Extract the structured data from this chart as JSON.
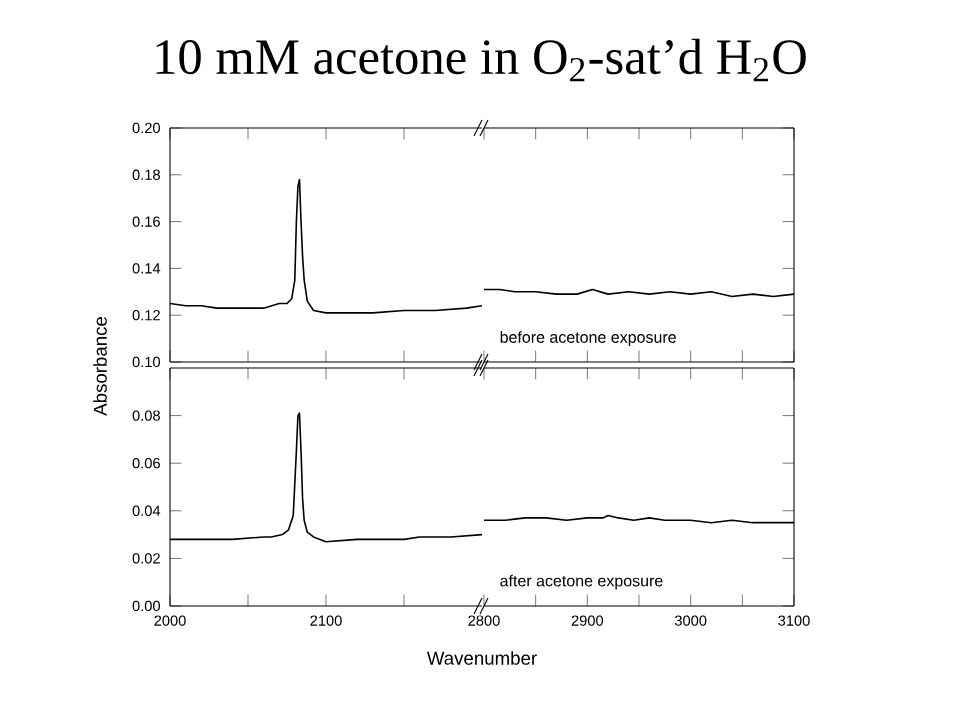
{
  "chart_data": [
    {
      "type": "line",
      "title": "10 mM acetone in O$_{2}$-sat’d H$_{2}$O",
      "color": "#000000",
      "xlim": [
        2000,
        2200
      ],
      "ylim": [
        0.1,
        0.2
      ],
      "tick_labels": "y",
      "xticks": [
        2000,
        {
          "value": 2050,
          "label": null
        },
        2100,
        {
          "value": 2150,
          "label": null
        }
      ],
      "yticks": [
        {
          "value": 0.1,
          "label": "0.10"
        },
        {
          "value": 0.12,
          "label": "0.12"
        },
        {
          "value": 0.14,
          "label": "0.14"
        },
        {
          "value": 0.16,
          "label": "0.16"
        },
        {
          "value": 0.18,
          "label": "0.18"
        },
        {
          "value": 0.2,
          "label": "0.20"
        }
      ],
      "x": [
        2000,
        2010,
        2020,
        2030,
        2040,
        2050,
        2060,
        2070,
        2075,
        2078,
        2080,
        2081,
        2082,
        2083,
        2084,
        2085,
        2086,
        2088,
        2092,
        2100,
        2110,
        2130,
        2150,
        2170,
        2190,
        2200
      ],
      "values": [
        0.125,
        0.124,
        0.124,
        0.123,
        0.123,
        0.123,
        0.123,
        0.125,
        0.125,
        0.127,
        0.135,
        0.16,
        0.175,
        0.178,
        0.16,
        0.145,
        0.135,
        0.126,
        0.122,
        0.121,
        0.121,
        0.121,
        0.122,
        0.122,
        0.123,
        0.124
      ]
    },
    {
      "type": "line",
      "color": "#000000",
      "xlim": [
        2800,
        3100
      ],
      "ylim": [
        0.1,
        0.2
      ],
      "tick_labels": false,
      "xticks": [
        2800,
        {
          "value": 2850,
          "label": null
        },
        2900,
        {
          "value": 2950,
          "label": null
        },
        3000,
        {
          "value": 3050,
          "label": null
        },
        3100
      ],
      "yticks": [
        0.1,
        0.12,
        0.14,
        0.16,
        0.18,
        0.2
      ],
      "annotations": [
        "before acetone exposure"
      ],
      "x": [
        2800,
        2815,
        2830,
        2850,
        2870,
        2890,
        2905,
        2920,
        2940,
        2960,
        2980,
        3000,
        3020,
        3040,
        3060,
        3080,
        3100
      ],
      "values": [
        0.131,
        0.131,
        0.13,
        0.13,
        0.129,
        0.129,
        0.131,
        0.129,
        0.13,
        0.129,
        0.13,
        0.129,
        0.13,
        0.128,
        0.129,
        0.128,
        0.129
      ]
    },
    {
      "type": "line",
      "ylabel": "Absorbance",
      "color": "#000000",
      "xlim": [
        2000,
        2200
      ],
      "ylim": [
        0,
        0.1
      ],
      "xticks": [
        2000,
        {
          "value": 2050,
          "label": null
        },
        2100,
        {
          "value": 2150,
          "label": null
        }
      ],
      "yticks": [
        {
          "value": 0,
          "label": "0.00"
        },
        {
          "value": 0.02,
          "label": "0.02"
        },
        {
          "value": 0.04,
          "label": "0.04"
        },
        {
          "value": 0.06,
          "label": "0.06"
        },
        {
          "value": 0.08,
          "label": "0.08"
        }
      ],
      "x": [
        2000,
        2020,
        2040,
        2060,
        2065,
        2072,
        2076,
        2079,
        2081,
        2082,
        2083,
        2084,
        2085,
        2086,
        2088,
        2092,
        2100,
        2120,
        2150,
        2160,
        2180,
        2200
      ],
      "values": [
        0.028,
        0.028,
        0.028,
        0.029,
        0.029,
        0.03,
        0.032,
        0.038,
        0.065,
        0.08,
        0.081,
        0.065,
        0.045,
        0.036,
        0.031,
        0.029,
        0.027,
        0.028,
        0.028,
        0.029,
        0.029,
        0.03
      ]
    },
    {
      "type": "line",
      "xlabel": "Wavenumber",
      "color": "#000000",
      "xlim": [
        2800,
        3100
      ],
      "ylim": [
        0,
        0.1
      ],
      "tick_labels": "x",
      "xticks": [
        2800,
        {
          "value": 2850,
          "label": null
        },
        2900,
        {
          "value": 2950,
          "label": null
        },
        3000,
        {
          "value": 3050,
          "label": null
        },
        3100
      ],
      "yticks": [
        0,
        0.02,
        0.04,
        0.06,
        0.08
      ],
      "annotations": [
        "after acetone exposure"
      ],
      "x": [
        2800,
        2820,
        2840,
        2860,
        2880,
        2900,
        2915,
        2920,
        2930,
        2945,
        2960,
        2975,
        3000,
        3020,
        3040,
        3060,
        3080,
        3100
      ],
      "values": [
        0.036,
        0.036,
        0.037,
        0.037,
        0.036,
        0.037,
        0.037,
        0.038,
        0.037,
        0.036,
        0.037,
        0.036,
        0.036,
        0.035,
        0.036,
        0.035,
        0.035,
        0.035
      ]
    }
  ]
}
